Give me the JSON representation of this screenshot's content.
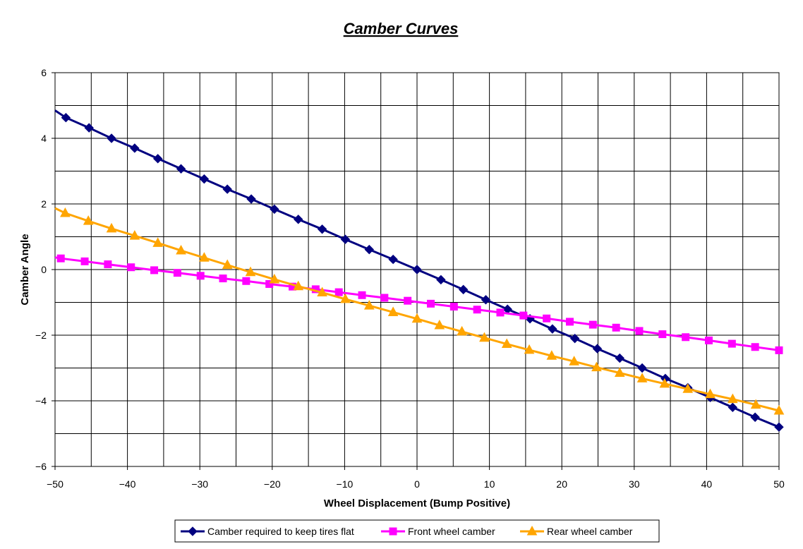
{
  "chart_data": {
    "type": "line",
    "title": "Camber Curves",
    "xlabel": "Wheel Displacement (Bump Positive)",
    "ylabel": "Camber Angle",
    "xlim": [
      -50,
      50
    ],
    "ylim": [
      -6,
      6
    ],
    "x_ticks": [
      -50,
      -40,
      -30,
      -20,
      -10,
      0,
      10,
      20,
      30,
      40,
      50
    ],
    "y_ticks": [
      -6,
      -4,
      -2,
      0,
      2,
      4,
      6
    ],
    "grid": true,
    "legend_position": "bottom",
    "series": [
      {
        "name": "Camber required to keep tires flat",
        "color": "#000080",
        "marker": "diamond",
        "x": [
          -50,
          -48.5,
          -45.3,
          -42.2,
          -39,
          -35.8,
          -32.6,
          -29.4,
          -26.2,
          -22.9,
          -19.7,
          -16.4,
          -13.1,
          -9.9,
          -6.6,
          -3.3,
          0,
          3.3,
          6.4,
          9.5,
          12.5,
          15.6,
          18.7,
          21.8,
          24.9,
          28.0,
          31.1,
          34.3,
          37.4,
          40.5,
          43.6,
          46.7,
          50
        ],
        "y": [
          4.85,
          4.63,
          4.32,
          4.0,
          3.7,
          3.38,
          3.07,
          2.76,
          2.45,
          2.15,
          1.84,
          1.53,
          1.23,
          0.92,
          0.61,
          0.31,
          0,
          -0.31,
          -0.61,
          -0.92,
          -1.21,
          -1.5,
          -1.81,
          -2.1,
          -2.41,
          -2.7,
          -3.0,
          -3.32,
          -3.6,
          -3.9,
          -4.2,
          -4.5,
          -4.8
        ]
      },
      {
        "name": "Front wheel camber",
        "color": "#FF00FF",
        "marker": "square",
        "x": [
          -50,
          -49.2,
          -45.9,
          -42.7,
          -39.5,
          -36.3,
          -33.1,
          -29.9,
          -26.8,
          -23.6,
          -20.4,
          -17.2,
          -14.0,
          -10.8,
          -7.6,
          -4.5,
          -1.3,
          1.9,
          5.1,
          8.3,
          11.5,
          14.7,
          17.9,
          21.1,
          24.3,
          27.5,
          30.7,
          33.9,
          37.1,
          40.3,
          43.5,
          46.7,
          50
        ],
        "y": [
          0.37,
          0.34,
          0.25,
          0.16,
          0.07,
          -0.02,
          -0.1,
          -0.19,
          -0.27,
          -0.35,
          -0.44,
          -0.52,
          -0.6,
          -0.69,
          -0.78,
          -0.86,
          -0.95,
          -1.04,
          -1.13,
          -1.22,
          -1.31,
          -1.4,
          -1.49,
          -1.59,
          -1.68,
          -1.77,
          -1.87,
          -1.97,
          -2.06,
          -2.16,
          -2.26,
          -2.36,
          -2.46
        ]
      },
      {
        "name": "Rear wheel camber",
        "color": "#FFA500",
        "marker": "triangle",
        "x": [
          -50,
          -48.6,
          -45.4,
          -42.2,
          -39,
          -35.8,
          -32.6,
          -29.4,
          -26.2,
          -23.0,
          -19.7,
          -16.4,
          -13.1,
          -9.9,
          -6.6,
          -3.3,
          0,
          3.1,
          6.2,
          9.3,
          12.4,
          15.5,
          18.6,
          21.7,
          24.8,
          28.0,
          31.1,
          34.2,
          37.4,
          40.5,
          43.6,
          46.8,
          50
        ],
        "y": [
          1.87,
          1.72,
          1.48,
          1.25,
          1.03,
          0.81,
          0.58,
          0.36,
          0.14,
          -0.08,
          -0.3,
          -0.51,
          -0.7,
          -0.9,
          -1.1,
          -1.3,
          -1.5,
          -1.7,
          -1.89,
          -2.08,
          -2.27,
          -2.45,
          -2.63,
          -2.8,
          -2.98,
          -3.15,
          -3.32,
          -3.48,
          -3.64,
          -3.8,
          -3.95,
          -4.12,
          -4.3
        ]
      }
    ]
  }
}
